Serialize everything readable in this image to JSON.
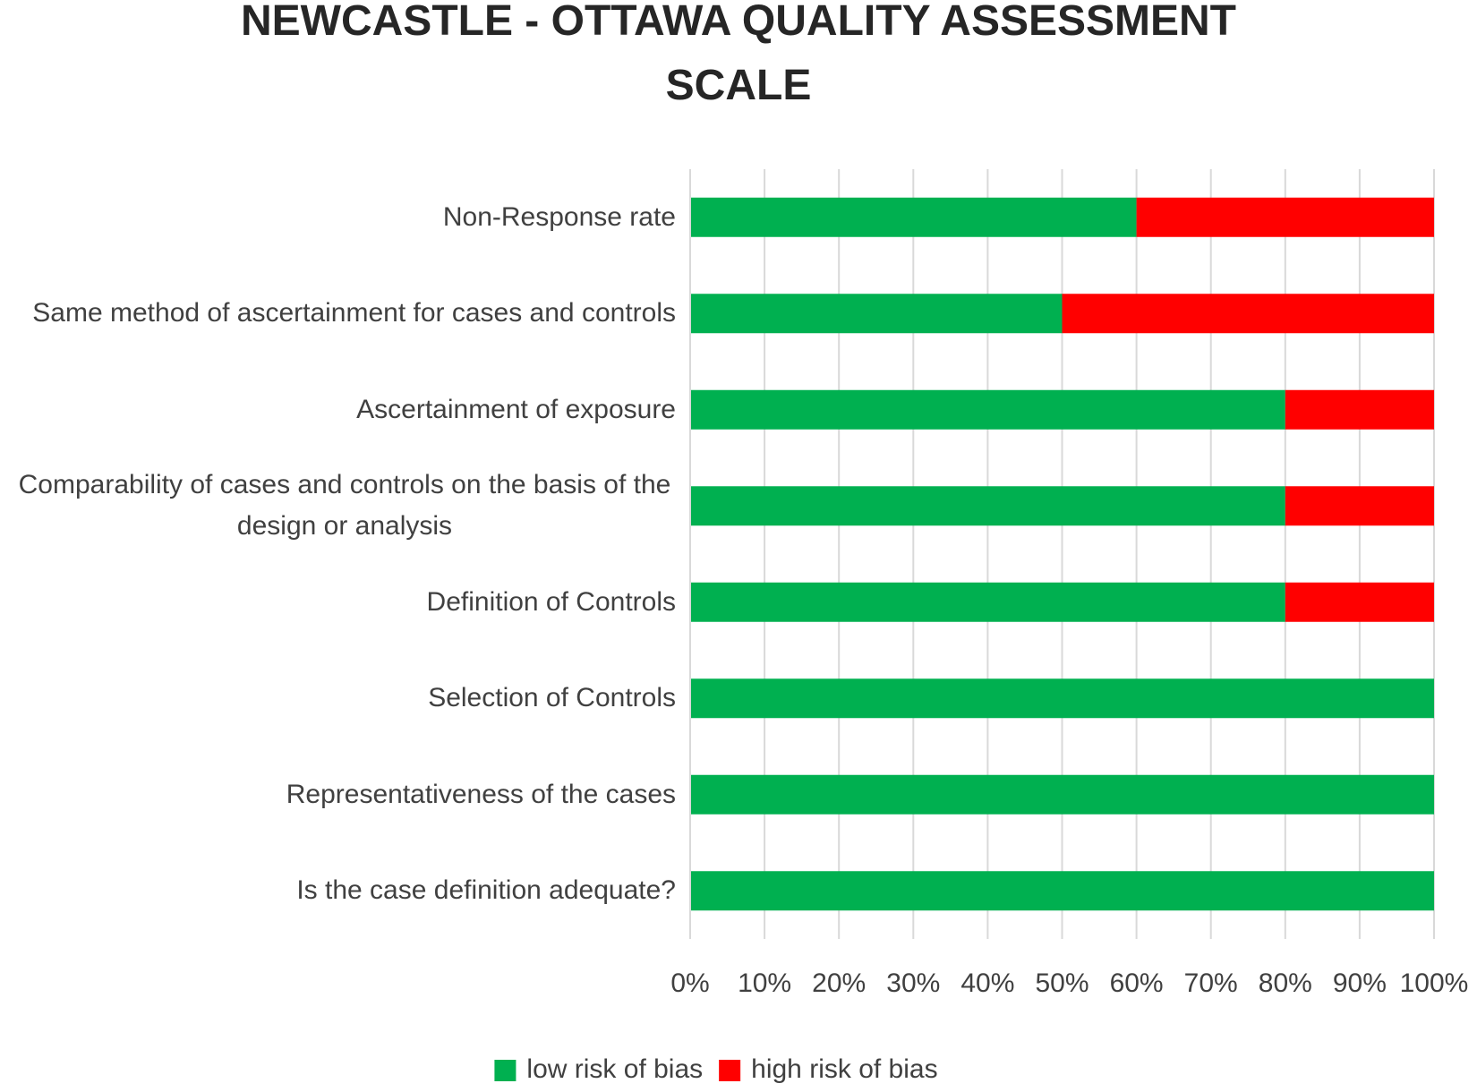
{
  "chart_data": {
    "type": "stacked-bar-horizontal",
    "title": "NEWCASTLE - OTTAWA QUALITY ASSESSMENT SCALE",
    "categories": [
      "Non-Response rate",
      "Same method of ascertainment for cases and controls",
      "Ascertainment of exposure",
      "Comparability of cases and controls on the basis of the design or analysis",
      "Definition of Controls",
      "Selection of Controls",
      "Representativeness of the cases",
      "Is the case definition adequate?"
    ],
    "series": [
      {
        "name": "low risk of bias",
        "color": "#00b050",
        "values": [
          60,
          50,
          80,
          80,
          80,
          100,
          100,
          100
        ]
      },
      {
        "name": "high risk of bias",
        "color": "#ff0000",
        "values": [
          40,
          50,
          20,
          20,
          20,
          0,
          0,
          0
        ]
      }
    ],
    "xlim": [
      0,
      100
    ],
    "xticks": [
      {
        "value": 0,
        "label": "0%"
      },
      {
        "value": 10,
        "label": "10%"
      },
      {
        "value": 20,
        "label": "20%"
      },
      {
        "value": 30,
        "label": "30%"
      },
      {
        "value": 40,
        "label": "40%"
      },
      {
        "value": 50,
        "label": "50%"
      },
      {
        "value": 60,
        "label": "60%"
      },
      {
        "value": 70,
        "label": "70%"
      },
      {
        "value": 80,
        "label": "80%"
      },
      {
        "value": 90,
        "label": "90%"
      },
      {
        "value": 100,
        "label": "100%"
      }
    ],
    "grid": true,
    "legend": "bottom"
  }
}
